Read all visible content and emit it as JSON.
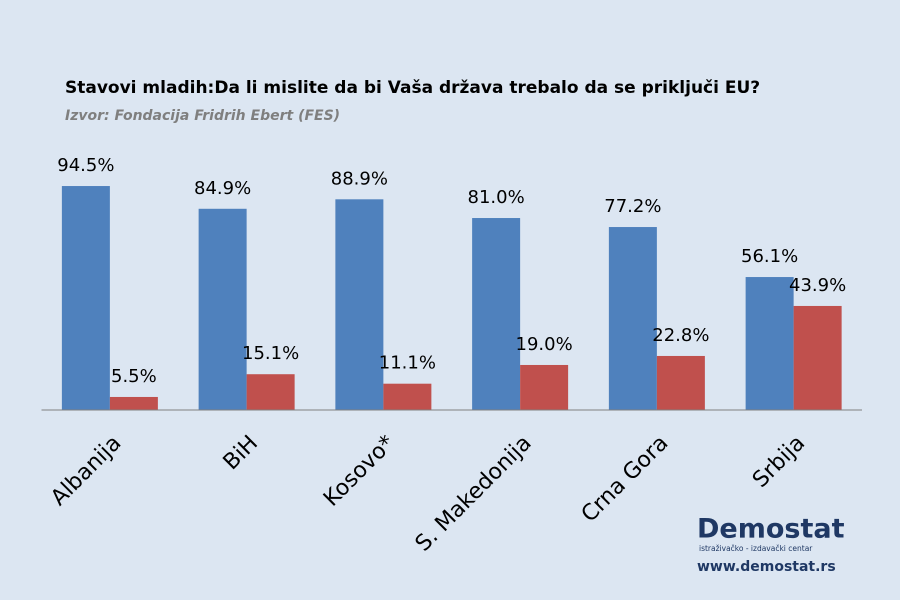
{
  "chart_data": {
    "type": "bar",
    "title": "Stavovi mladih:Da li mislite da bi Vaša država trebalo da se priključi EU?",
    "subtitle": "Izvor: Fondacija Fridrih Ebert (FES)",
    "categories": [
      "Albanija",
      "BiH",
      "Kosovo*",
      "S. Makedonija",
      "Crna Gora",
      "Srbija"
    ],
    "series": [
      {
        "color": "#4f81bd",
        "values": [
          94.5,
          84.9,
          88.9,
          81.0,
          77.2,
          56.1
        ],
        "value_labels": [
          "94.5%",
          "84.9%",
          "88.9%",
          "81.0%",
          "77.2%",
          "56.1%"
        ]
      },
      {
        "color": "#c0504d",
        "values": [
          5.5,
          15.1,
          11.1,
          19.0,
          22.8,
          43.9
        ],
        "value_labels": [
          "5.5%",
          "15.1%",
          "11.1%",
          "19.0%",
          "22.8%",
          "43.9%"
        ]
      }
    ],
    "ylim": [
      0,
      100
    ]
  },
  "branding": {
    "logo": "Demostat",
    "tagline": "istraživačko - izdavački centar",
    "url": "www.demostat.rs"
  }
}
